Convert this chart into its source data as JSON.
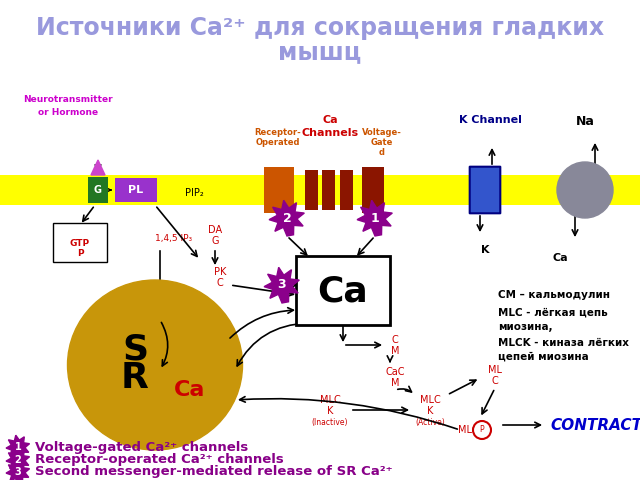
{
  "title_line1": "Источники Ca²⁺ для сокращения гладких",
  "title_line2": "мышц",
  "title_color": "#9999dd",
  "title_fontsize": 17,
  "bg_color": "white",
  "membrane_color": "#ffff00",
  "purple": "#880088",
  "red": "#cc0000",
  "orange": "#cc5500",
  "blue": "#0000bb",
  "dark_blue": "#000088",
  "gold": "#c8960a",
  "green_dark": "#006600",
  "magenta": "#cc00cc",
  "black": "#000000",
  "gray": "#888899",
  "bullet1": "Voltage-gated Ca²⁺ channels",
  "bullet2": "Receptor-operated Ca²⁺ channels",
  "bullet3": "Second messenger-mediated release of SR Ca²⁺",
  "contraction": "CONTRACTION",
  "legend_cm": "CM – кальмодулин",
  "legend_mlc1": "MLC - лёгкая цепь",
  "legend_mlc2": "миозина,",
  "legend_mlck1": "MLCK - киназа лёгких",
  "legend_mlck2": "цепей миозина"
}
